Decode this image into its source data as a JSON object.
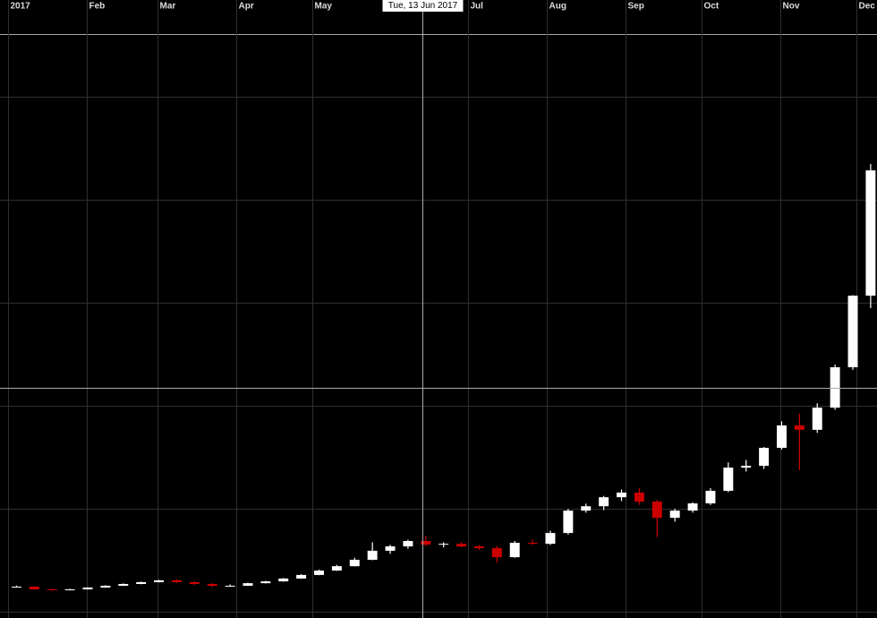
{
  "chart_data": {
    "type": "candlestick",
    "x": [
      "2017-01-01",
      "2017-01-08",
      "2017-01-15",
      "2017-01-22",
      "2017-01-29",
      "2017-02-05",
      "2017-02-12",
      "2017-02-19",
      "2017-02-26",
      "2017-03-05",
      "2017-03-12",
      "2017-03-19",
      "2017-03-26",
      "2017-04-02",
      "2017-04-09",
      "2017-04-16",
      "2017-04-23",
      "2017-04-30",
      "2017-05-07",
      "2017-05-14",
      "2017-05-21",
      "2017-05-28",
      "2017-06-04",
      "2017-06-11",
      "2017-06-18",
      "2017-06-25",
      "2017-07-02",
      "2017-07-09",
      "2017-07-16",
      "2017-07-23",
      "2017-07-30",
      "2017-08-06",
      "2017-08-13",
      "2017-08-20",
      "2017-08-27",
      "2017-09-03",
      "2017-09-10",
      "2017-09-17",
      "2017-09-24",
      "2017-10-01",
      "2017-10-08",
      "2017-10-15",
      "2017-10-22",
      "2017-10-29",
      "2017-11-05",
      "2017-11-12",
      "2017-11-19",
      "2017-11-26",
      "2017-12-03"
    ],
    "open": [
      960,
      975,
      870,
      835,
      870,
      940,
      1010,
      1080,
      1150,
      1220,
      1150,
      1080,
      1010,
      1010,
      1110,
      1180,
      1290,
      1430,
      1600,
      1770,
      2020,
      2370,
      2540,
      2750,
      2610,
      2640,
      2540,
      2470,
      2120,
      2680,
      2640,
      3060,
      3930,
      4100,
      4450,
      4630,
      4280,
      3650,
      3930,
      4210,
      4700,
      5600,
      5670,
      6370,
      7240,
      7070,
      7930,
      9500,
      12280
    ],
    "high": [
      1020,
      990,
      900,
      890,
      950,
      1030,
      1100,
      1170,
      1240,
      1260,
      1180,
      1110,
      1060,
      1130,
      1200,
      1310,
      1460,
      1640,
      1820,
      2100,
      2700,
      2600,
      2800,
      2950,
      2700,
      2700,
      2600,
      2550,
      2750,
      2800,
      3150,
      4000,
      4200,
      4500,
      4750,
      4800,
      4350,
      4000,
      4250,
      4800,
      5800,
      5900,
      6400,
      7400,
      7700,
      8100,
      9600,
      12300,
      17400
    ],
    "low": [
      940,
      860,
      820,
      830,
      860,
      930,
      1000,
      1070,
      1140,
      1120,
      1040,
      960,
      990,
      1000,
      1100,
      1170,
      1280,
      1420,
      1590,
      1760,
      2000,
      2250,
      2450,
      2550,
      2500,
      2500,
      2400,
      1900,
      2100,
      2600,
      2600,
      3000,
      3850,
      3950,
      4300,
      4150,
      2900,
      3500,
      3850,
      4150,
      4650,
      5450,
      5550,
      6300,
      5500,
      6950,
      7850,
      9400,
      11800
    ],
    "close": [
      975,
      870,
      835,
      870,
      940,
      1010,
      1080,
      1150,
      1220,
      1150,
      1080,
      1010,
      1010,
      1110,
      1180,
      1290,
      1430,
      1600,
      1770,
      2020,
      2370,
      2540,
      2750,
      2610,
      2640,
      2540,
      2470,
      2120,
      2680,
      2640,
      3060,
      3930,
      4100,
      4450,
      4630,
      4280,
      3650,
      3930,
      4210,
      4700,
      5600,
      5670,
      6370,
      7240,
      7070,
      7930,
      9500,
      12280,
      17150
    ],
    "up_color": "#ffffff",
    "down_color": "#cc0000",
    "xlim": [
      "2016-12-29",
      "2017-12-09"
    ],
    "xticks": [
      {
        "value": "2017-01-01",
        "label": "2017"
      },
      {
        "value": "2017-02-01",
        "label": "Feb"
      },
      {
        "value": "2017-03-01",
        "label": "Mar"
      },
      {
        "value": "2017-04-01",
        "label": "Apr"
      },
      {
        "value": "2017-05-01",
        "label": "May"
      },
      {
        "value": "2017-07-01",
        "label": "Jul"
      },
      {
        "value": "2017-08-01",
        "label": "Aug"
      },
      {
        "value": "2017-09-01",
        "label": "Sep"
      },
      {
        "value": "2017-10-01",
        "label": "Oct"
      },
      {
        "value": "2017-11-01",
        "label": "Nov"
      },
      {
        "value": "2017-12-01",
        "label": "Dec"
      }
    ],
    "ylim": [
      -243,
      23770
    ],
    "yticks": [
      0,
      4000,
      8000,
      12000,
      16000,
      20000
    ],
    "grid": true,
    "crosshair": {
      "label": "Tue, 13 Jun 2017",
      "x": "2017-06-13",
      "y": 8700
    }
  }
}
